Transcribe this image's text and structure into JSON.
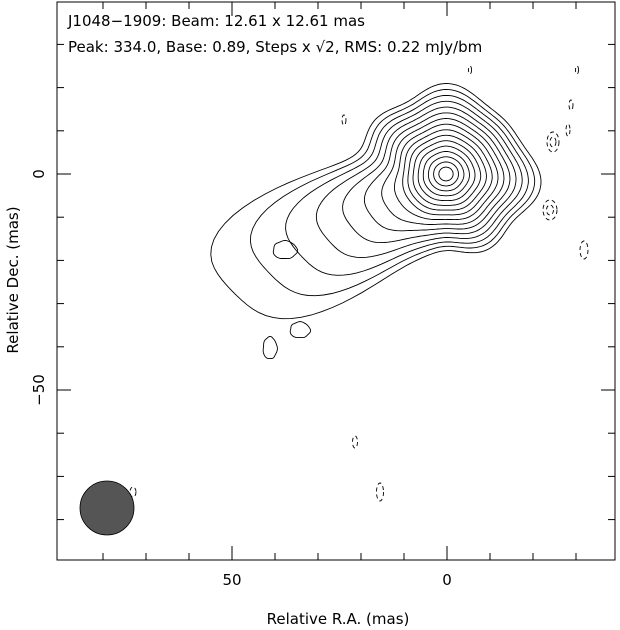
{
  "header": {
    "line1": "J1048−1909: Beam: 12.61 x 12.61 mas",
    "line2_prefix": "Peak: 334.0, Base: 0.89, Steps x ",
    "line2_sqrt": "√2",
    "line2_suffix": ", RMS: 0.22 mJy/bm"
  },
  "axes": {
    "xlabel": "Relative R.A. (mas)",
    "ylabel": "Relative Dec. (mas)",
    "x_ticks": [
      "50",
      "0"
    ],
    "y_ticks": [
      "0",
      "−50"
    ]
  },
  "colors": {
    "beam_fill": "#555555",
    "line": "#000000"
  }
}
